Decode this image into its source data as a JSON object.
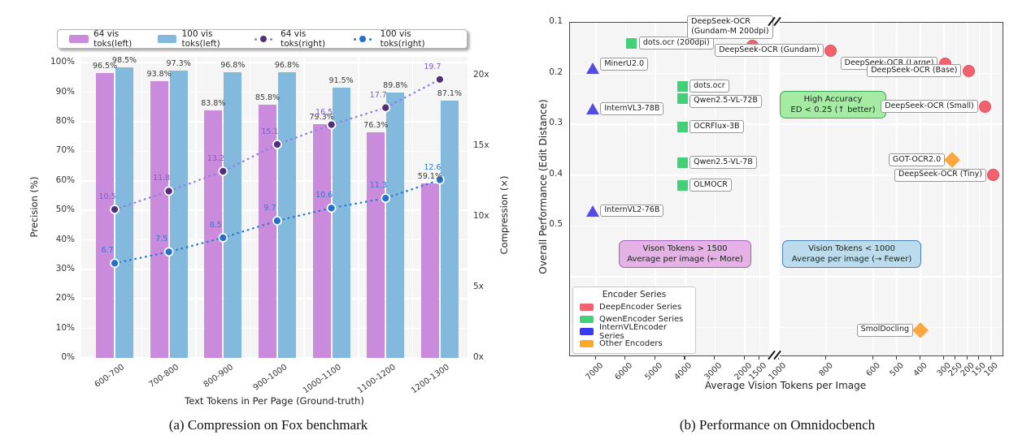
{
  "figure": {
    "captions": {
      "a": "(a)  Compression on Fox benchmark",
      "b": "(b)  Performance on Omnidocbench"
    }
  },
  "chart_data": [
    {
      "id": "fox-compression",
      "type": "bar",
      "caption": "(a)  Compression on Fox benchmark",
      "xlabel": "Text Tokens in Per Page (Ground-truth)",
      "ylabel_left": "Precision (%)",
      "ylabel_right": "Compression (×)",
      "categories": [
        "600-700",
        "700-800",
        "800-900",
        "900-1000",
        "1000-1100",
        "1100-1200",
        "1200-1300"
      ],
      "ylim_left": [
        0,
        102
      ],
      "ylim_right": [
        0,
        21.3
      ],
      "yticks_left": [
        0,
        10,
        20,
        30,
        40,
        50,
        60,
        70,
        80,
        90,
        100
      ],
      "yticks_right": [
        0,
        5,
        10,
        15,
        20
      ],
      "grid": true,
      "legend_position": "top",
      "bar_series": [
        {
          "name": "64 vis toks(left)",
          "color": "#cb8bdc",
          "values": [
            96.5,
            93.8,
            83.8,
            85.8,
            79.3,
            76.3,
            59.1
          ]
        },
        {
          "name": "100 vis toks(left)",
          "color": "#82b9dc",
          "values": [
            98.5,
            97.3,
            96.8,
            96.8,
            91.5,
            89.8,
            87.1
          ]
        }
      ],
      "line_series": [
        {
          "name": "64 vis toks(right)",
          "line_color": "#8f7fe8",
          "marker_color": "#503078",
          "label_color": "#7e5ec0",
          "values": [
            10.5,
            11.8,
            13.2,
            15.1,
            16.5,
            17.7,
            19.7
          ]
        },
        {
          "name": "100 vis toks(right)",
          "line_color": "#2b7bce",
          "marker_color": "#2272c8",
          "label_color": "#2b7bd4",
          "values": [
            6.7,
            7.5,
            8.5,
            9.7,
            10.6,
            11.3,
            12.6
          ]
        }
      ]
    },
    {
      "id": "omnidocbench-performance",
      "type": "scatter",
      "caption": "(b)  Performance on Omnidocbench",
      "xlabel": "Average Vision Tokens per Image",
      "ylabel": "Overall Performance (Edit Distance)",
      "x_axis": {
        "ticks": [
          7000,
          6000,
          5000,
          4000,
          3000,
          2000,
          1500,
          1000,
          800,
          600,
          500,
          400,
          300,
          250,
          200,
          150,
          100
        ],
        "break_between": [
          1500,
          1000
        ],
        "direction": "descending"
      },
      "y_axis": {
        "ticks": [
          0.1,
          0.2,
          0.3,
          0.4,
          0.5
        ],
        "range": [
          0.1,
          0.755
        ],
        "low_at_top": true
      },
      "series_legend": {
        "title": "Encoder Series",
        "entries": [
          {
            "label": "DeepEncoder Series",
            "color": "#f4606c"
          },
          {
            "label": "QwenEncoder Series",
            "color": "#42d078"
          },
          {
            "label": "InternVLEncoder Series",
            "color": "#3939ee"
          },
          {
            "label": "Other Encoders",
            "color": "#ffa726"
          }
        ]
      },
      "points": [
        {
          "label": "MinerU2.0",
          "series": "InternVLEncoder Series",
          "shape": "triangle",
          "color": "#554ae8",
          "tokens": 7100,
          "ed": 0.19,
          "side": "right",
          "dy": -5
        },
        {
          "label": "InternVL3-78B",
          "series": "InternVLEncoder Series",
          "shape": "triangle",
          "color": "#554ae8",
          "tokens": 7100,
          "ed": 0.27,
          "side": "right"
        },
        {
          "label": "InternVL2-76B",
          "series": "InternVLEncoder Series",
          "shape": "triangle",
          "color": "#554ae8",
          "tokens": 7100,
          "ed": 0.47,
          "side": "right"
        },
        {
          "label": "dots.ocr (200dpi)",
          "series": "QwenEncoder Series",
          "shape": "square",
          "color": "#42d078",
          "tokens": 5800,
          "ed": 0.14,
          "side": "right"
        },
        {
          "label": "dots.ocr",
          "series": "QwenEncoder Series",
          "shape": "square",
          "color": "#42d078",
          "tokens": 4100,
          "ed": 0.225,
          "side": "right"
        },
        {
          "label": "Qwen2.5-VL-72B",
          "series": "QwenEncoder Series",
          "shape": "square",
          "color": "#42d078",
          "tokens": 4100,
          "ed": 0.25,
          "side": "right",
          "dy": 3
        },
        {
          "label": "OCRFlux-3B",
          "series": "QwenEncoder Series",
          "shape": "square",
          "color": "#42d078",
          "tokens": 4100,
          "ed": 0.305,
          "side": "right"
        },
        {
          "label": "Qwen2.5-VL-7B",
          "series": "QwenEncoder Series",
          "shape": "square",
          "color": "#42d078",
          "tokens": 4100,
          "ed": 0.375,
          "side": "right"
        },
        {
          "label": "OLMOCR",
          "series": "QwenEncoder Series",
          "shape": "square",
          "color": "#42d078",
          "tokens": 4100,
          "ed": 0.42,
          "side": "right"
        },
        {
          "label": "DeepSeek-OCR\n(Gundam-M 200dpi)",
          "series": "DeepEncoder Series",
          "shape": "circle",
          "color": "#f4606c",
          "tokens": 1750,
          "ed": 0.145,
          "side": "above"
        },
        {
          "label": "DeepSeek-OCR (Gundam)",
          "series": "DeepEncoder Series",
          "shape": "circle",
          "color": "#f4606c",
          "tokens": 780,
          "ed": 0.155,
          "side": "left"
        },
        {
          "label": "DeepSeek-OCR (Large)",
          "series": "DeepEncoder Series",
          "shape": "circle",
          "color": "#f4606c",
          "tokens": 295,
          "ed": 0.18,
          "side": "left"
        },
        {
          "label": "DeepSeek-OCR (Base)",
          "series": "DeepEncoder Series",
          "shape": "circle",
          "color": "#f4606c",
          "tokens": 195,
          "ed": 0.195,
          "side": "left"
        },
        {
          "label": "DeepSeek-OCR (Small)",
          "series": "DeepEncoder Series",
          "shape": "circle",
          "color": "#f4606c",
          "tokens": 125,
          "ed": 0.265,
          "side": "left"
        },
        {
          "label": "GOT-OCR2.0",
          "series": "Other Encoders",
          "shape": "diamond",
          "color": "#ffa73e",
          "tokens": 265,
          "ed": 0.37,
          "side": "left"
        },
        {
          "label": "DeepSeek-OCR (Tiny)",
          "series": "DeepEncoder Series",
          "shape": "circle",
          "color": "#f4606c",
          "tokens": 90,
          "ed": 0.4,
          "side": "left"
        },
        {
          "label": "SmolDocling",
          "series": "Other Encoders",
          "shape": "diamond",
          "color": "#ffa73e",
          "tokens": 400,
          "ed": 0.705,
          "side": "left"
        }
      ],
      "annotations": [
        {
          "id": "high-accuracy-note",
          "lines": [
            "High Accuracy",
            "ED < 0.25 (↑ better)"
          ],
          "fill": "#a6eba4",
          "border": "#3aa655"
        },
        {
          "id": "more-tokens-note",
          "lines": [
            "Vison Tokens > 1500",
            "Average per image (← More)"
          ],
          "fill": "#e4b2e4",
          "border": "#a261b8"
        },
        {
          "id": "fewer-tokens-note",
          "lines": [
            "Vision Tokens < 1000",
            "Average per image (→ Fewer)"
          ],
          "fill": "#bcdcee",
          "border": "#4a7fb5"
        }
      ]
    }
  ]
}
